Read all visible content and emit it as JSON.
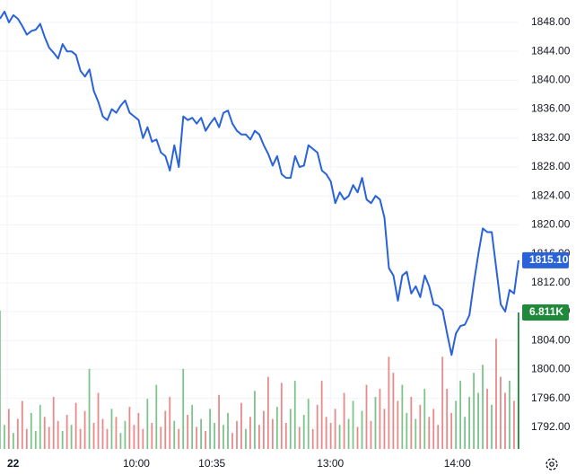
{
  "chart_data": {
    "type": "line",
    "xlim": [
      0,
      116
    ],
    "xticks": [
      {
        "value": 1.6,
        "label": "22"
      },
      {
        "value": 30.5,
        "label": "10:00"
      },
      {
        "value": 47.4,
        "label": "10:35"
      },
      {
        "value": 73.9,
        "label": "13:00"
      },
      {
        "value": 102.3,
        "label": "14:00"
      }
    ],
    "ylim": [
      1789,
      1851.1
    ],
    "yticks": [
      {
        "value": 1792,
        "label": "1792.00"
      },
      {
        "value": 1796,
        "label": "1796.00"
      },
      {
        "value": 1800,
        "label": "1800.00"
      },
      {
        "value": 1804,
        "label": "1804.00"
      },
      {
        "value": 1808,
        "label": "1808.00"
      },
      {
        "value": 1812,
        "label": "1812.00"
      },
      {
        "value": 1816,
        "label": "1816.00"
      },
      {
        "value": 1820,
        "label": "1820.00"
      },
      {
        "value": 1824,
        "label": "1824.00"
      },
      {
        "value": 1828,
        "label": "1828.00"
      },
      {
        "value": 1832,
        "label": "1832.00"
      },
      {
        "value": 1836,
        "label": "1836.00"
      },
      {
        "value": 1840,
        "label": "1840.00"
      },
      {
        "value": 1844,
        "label": "1844.00"
      },
      {
        "value": 1848,
        "label": "1848.00"
      }
    ],
    "y2lim": [
      0,
      22.4
    ],
    "grid": true,
    "series": [
      {
        "name": "Price",
        "color": "#2962d9",
        "values": [
          1848.5,
          1849.5,
          1848,
          1849,
          1848.5,
          1847.5,
          1846.3,
          1846.8,
          1847,
          1847.8,
          1846,
          1844.5,
          1843.8,
          1843,
          1845,
          1844,
          1844,
          1843.5,
          1841.3,
          1840.5,
          1841.5,
          1838.5,
          1837,
          1835,
          1834.5,
          1836,
          1835.5,
          1836.5,
          1837.2,
          1835.5,
          1835,
          1834.5,
          1832,
          1833.5,
          1831.5,
          1831.8,
          1830,
          1829.5,
          1827.5,
          1831,
          1828,
          1835,
          1834.5,
          1834.8,
          1834,
          1834.8,
          1833,
          1834,
          1834.8,
          1833.5,
          1835.5,
          1835.8,
          1834,
          1833,
          1832.5,
          1832.5,
          1831.8,
          1833,
          1832.5,
          1831,
          1829.8,
          1828.2,
          1829.5,
          1827,
          1826.5,
          1826.5,
          1829.5,
          1828,
          1828.2,
          1831,
          1830.5,
          1830,
          1827.5,
          1827,
          1826,
          1823,
          1824.5,
          1823.5,
          1824,
          1825.5,
          1824.5,
          1826.5,
          1823.5,
          1823,
          1824,
          1823.5,
          1821,
          1814,
          1813,
          1809.5,
          1813,
          1813.5,
          1810.5,
          1811.5,
          1810,
          1813,
          1811.5,
          1809,
          1808.8,
          1808.2,
          1805,
          1802,
          1805,
          1806,
          1806.2,
          1807.5,
          1812,
          1816,
          1819.5,
          1819,
          1819,
          1814,
          1809,
          1808,
          1811,
          1810.5,
          1815.1
        ],
        "last_value": {
          "value": 1815.1,
          "label": "1815.10"
        }
      },
      {
        "name": "Volume",
        "axis": "y2",
        "up_color": "#7cc48a",
        "down_color": "#e88a8a",
        "last_color": "#1e8a3a",
        "values": [
          6.9,
          1.2,
          2.0,
          0.8,
          1.5,
          2.4,
          1.0,
          1.8,
          0.9,
          2.2,
          1.6,
          1.1,
          2.6,
          1.4,
          0.9,
          1.7,
          1.2,
          2.3,
          1.0,
          1.9,
          4.0,
          1.3,
          2.8,
          1.5,
          1.0,
          2.0,
          1.6,
          0.8,
          1.4,
          2.1,
          1.2,
          1.8,
          1.0,
          2.5,
          1.3,
          3.2,
          1.1,
          1.9,
          2.6,
          1.4,
          1.0,
          4.0,
          1.7,
          2.2,
          1.1,
          1.5,
          0.9,
          2.0,
          1.3,
          2.7,
          1.2,
          1.8,
          0.8,
          1.4,
          2.3,
          1.0,
          1.6,
          2.9,
          1.2,
          1.9,
          3.6,
          1.5,
          2.1,
          3.3,
          1.3,
          2.0,
          3.4,
          1.1,
          1.7,
          2.5,
          1.0,
          2.2,
          3.4,
          1.6,
          1.3,
          2.0,
          1.2,
          2.8,
          1.5,
          2.4,
          1.1,
          1.9,
          3.2,
          1.4,
          2.6,
          3.0,
          2.0,
          4.6,
          3.8,
          2.4,
          3.2,
          1.8,
          2.6,
          1.5,
          2.2,
          3.0,
          1.6,
          2.0,
          1.2,
          4.6,
          3.0,
          1.8,
          2.4,
          3.4,
          1.6,
          2.6,
          3.8,
          2.8,
          4.2,
          3.0,
          2.2,
          5.5,
          3.6,
          2.8,
          3.4,
          2.4,
          6.811
        ],
        "last_value": {
          "value": 6.811,
          "label": "6.811K"
        }
      }
    ]
  }
}
